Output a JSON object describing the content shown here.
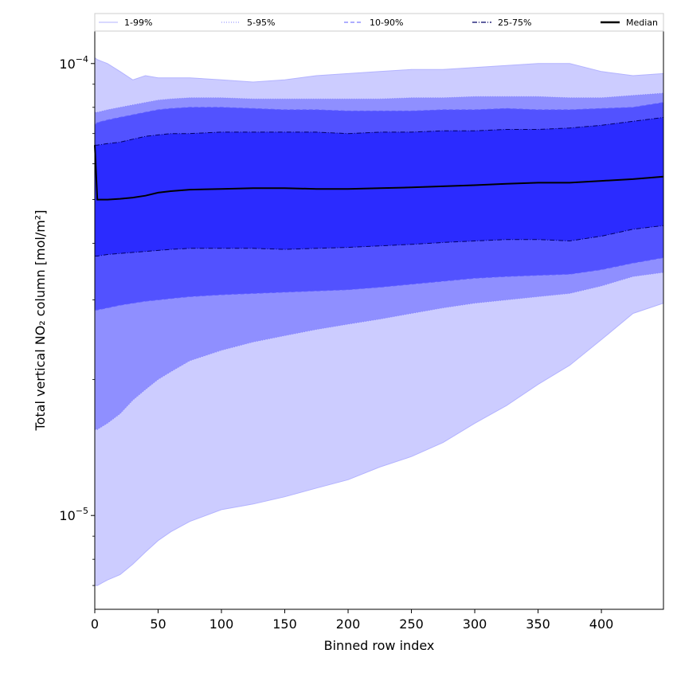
{
  "chart_data": {
    "type": "area",
    "title": "",
    "xlabel": "Binned row index",
    "ylabel": "Total vertical NO₂ column [mol/m²]",
    "xlim": [
      0,
      449
    ],
    "ylim": [
      6.2e-06,
      0.000118
    ],
    "yscale": "log",
    "grid": false,
    "legend_position": "top, outside plot, single row",
    "x_ticks": [
      0,
      50,
      100,
      150,
      200,
      250,
      300,
      350,
      400
    ],
    "x_tick_labels": [
      "0",
      "50",
      "100",
      "150",
      "200",
      "250",
      "300",
      "350",
      "400"
    ],
    "y_ticks": [
      1e-05,
      0.0001
    ],
    "y_tick_labels": [
      {
        "base": "10",
        "exp": "−5"
      },
      {
        "base": "10",
        "exp": "−4"
      }
    ],
    "colors": {
      "band_1_99": "#ccccff",
      "band_5_95": "#8f8fff",
      "band_10_90": "#5252ff",
      "band_25_75": "#2b2bff",
      "line_1_99": "#b3b3ff",
      "line_5_95": "#8080ff",
      "line_10_90": "#5c5cff",
      "line_25_75": "#000066",
      "median": "#000000"
    },
    "x": [
      0,
      2,
      10,
      20,
      30,
      40,
      50,
      60,
      75,
      100,
      125,
      150,
      175,
      200,
      225,
      250,
      275,
      300,
      325,
      350,
      375,
      400,
      425,
      449
    ],
    "series": [
      {
        "name": "1-99%",
        "role": "upper",
        "values": [
          0.000103,
          0.000102,
          0.0001,
          9.6e-05,
          9.2e-05,
          9.4e-05,
          9.3e-05,
          9.3e-05,
          9.3e-05,
          9.2e-05,
          9.1e-05,
          9.2e-05,
          9.4e-05,
          9.5e-05,
          9.6e-05,
          9.7e-05,
          9.7e-05,
          9.8e-05,
          9.9e-05,
          0.0001,
          0.0001,
          9.6e-05,
          9.4e-05,
          9.5e-05
        ]
      },
      {
        "name": "1-99%",
        "role": "lower",
        "values": [
          7e-06,
          7e-06,
          7.2e-06,
          7.4e-06,
          7.8e-06,
          8.3e-06,
          8.8e-06,
          9.2e-06,
          9.7e-06,
          1.03e-05,
          1.06e-05,
          1.1e-05,
          1.15e-05,
          1.2e-05,
          1.28e-05,
          1.35e-05,
          1.45e-05,
          1.6e-05,
          1.75e-05,
          1.95e-05,
          2.15e-05,
          2.45e-05,
          2.8e-05,
          2.95e-05
        ]
      },
      {
        "name": "5-95%",
        "role": "upper",
        "values": [
          7.8e-05,
          7.8e-05,
          7.9e-05,
          8e-05,
          8.1e-05,
          8.2e-05,
          8.3e-05,
          8.35e-05,
          8.4e-05,
          8.4e-05,
          8.35e-05,
          8.35e-05,
          8.35e-05,
          8.35e-05,
          8.35e-05,
          8.4e-05,
          8.4e-05,
          8.45e-05,
          8.45e-05,
          8.45e-05,
          8.4e-05,
          8.4e-05,
          8.5e-05,
          8.6e-05
        ]
      },
      {
        "name": "5-95%",
        "role": "lower",
        "values": [
          1.55e-05,
          1.55e-05,
          1.6e-05,
          1.68e-05,
          1.8e-05,
          1.9e-05,
          2e-05,
          2.08e-05,
          2.2e-05,
          2.32e-05,
          2.42e-05,
          2.5e-05,
          2.58e-05,
          2.65e-05,
          2.72e-05,
          2.8e-05,
          2.88e-05,
          2.95e-05,
          3e-05,
          3.05e-05,
          3.1e-05,
          3.22e-05,
          3.38e-05,
          3.45e-05
        ]
      },
      {
        "name": "10-90%",
        "role": "upper",
        "values": [
          7.3e-05,
          7.4e-05,
          7.5e-05,
          7.6e-05,
          7.7e-05,
          7.8e-05,
          7.9e-05,
          7.95e-05,
          8e-05,
          8e-05,
          7.95e-05,
          7.9e-05,
          7.9e-05,
          7.85e-05,
          7.85e-05,
          7.85e-05,
          7.9e-05,
          7.9e-05,
          7.95e-05,
          7.9e-05,
          7.9e-05,
          7.95e-05,
          8e-05,
          8.2e-05
        ]
      },
      {
        "name": "10-90%",
        "role": "lower",
        "values": [
          2.85e-05,
          2.85e-05,
          2.88e-05,
          2.92e-05,
          2.95e-05,
          2.98e-05,
          3e-05,
          3.02e-05,
          3.05e-05,
          3.08e-05,
          3.1e-05,
          3.12e-05,
          3.14e-05,
          3.16e-05,
          3.2e-05,
          3.25e-05,
          3.3e-05,
          3.35e-05,
          3.38e-05,
          3.4e-05,
          3.42e-05,
          3.5e-05,
          3.62e-05,
          3.72e-05
        ]
      },
      {
        "name": "25-75%",
        "role": "upper",
        "values": [
          6.6e-05,
          6.6e-05,
          6.65e-05,
          6.7e-05,
          6.8e-05,
          6.9e-05,
          6.95e-05,
          7e-05,
          7e-05,
          7.05e-05,
          7.05e-05,
          7.05e-05,
          7.05e-05,
          7e-05,
          7.05e-05,
          7.05e-05,
          7.1e-05,
          7.1e-05,
          7.15e-05,
          7.15e-05,
          7.2e-05,
          7.3e-05,
          7.45e-05,
          7.6e-05
        ]
      },
      {
        "name": "25-75%",
        "role": "lower",
        "values": [
          3.75e-05,
          3.75e-05,
          3.78e-05,
          3.8e-05,
          3.82e-05,
          3.84e-05,
          3.86e-05,
          3.88e-05,
          3.9e-05,
          3.9e-05,
          3.9e-05,
          3.88e-05,
          3.9e-05,
          3.92e-05,
          3.95e-05,
          3.98e-05,
          4.02e-05,
          4.05e-05,
          4.08e-05,
          4.08e-05,
          4.05e-05,
          4.15e-05,
          4.3e-05,
          4.38e-05
        ]
      },
      {
        "name": "Median",
        "role": "median",
        "values": [
          6.6e-05,
          5e-05,
          5e-05,
          5.02e-05,
          5.05e-05,
          5.1e-05,
          5.18e-05,
          5.22e-05,
          5.26e-05,
          5.28e-05,
          5.3e-05,
          5.3e-05,
          5.28e-05,
          5.28e-05,
          5.3e-05,
          5.32e-05,
          5.35e-05,
          5.38e-05,
          5.42e-05,
          5.45e-05,
          5.45e-05,
          5.5e-05,
          5.55e-05,
          5.62e-05
        ]
      }
    ],
    "legend": [
      {
        "label": "1-99%",
        "key": "line_1_99",
        "style": "solid-thin"
      },
      {
        "label": "5-95%",
        "key": "line_5_95",
        "style": "dotted"
      },
      {
        "label": "10-90%",
        "key": "line_10_90",
        "style": "dashed"
      },
      {
        "label": "25-75%",
        "key": "line_25_75",
        "style": "dash-dot"
      },
      {
        "label": "Median",
        "key": "median",
        "style": "solid-thick"
      }
    ]
  }
}
